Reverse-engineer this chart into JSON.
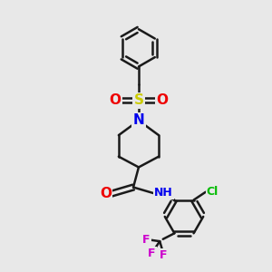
{
  "bg_color": "#e8e8e8",
  "bond_color": "#1a1a1a",
  "bond_width": 1.8,
  "S_color": "#cccc00",
  "N_color": "#0000ee",
  "O_color": "#ee0000",
  "F_color": "#cc00cc",
  "Cl_color": "#00bb00",
  "figsize": [
    3.0,
    3.0
  ],
  "dpi": 100,
  "xlim": [
    0,
    10
  ],
  "ylim": [
    0,
    10
  ]
}
